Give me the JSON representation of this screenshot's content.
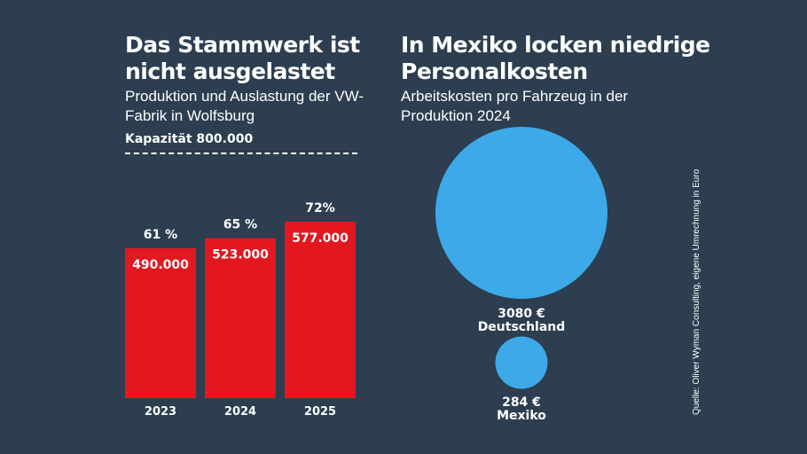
{
  "left_panel": {
    "title": "Das Stammwerk ist nicht ausgelastet",
    "subtitle": "Produktion und Auslastung der VW-Fabrik in Wolfsburg",
    "capacity_label": "Kapazität 800.000"
  },
  "right_panel": {
    "title": "In Mexiko locken niedrige Personalkosten",
    "subtitle": "Arbeitskosten pro Fahrzeug in der Produktion 2024"
  },
  "source": "Quelle: Oliver Wyman Consulting, eigene Umrechnung in Euro",
  "colors": {
    "background": "#2c3e50",
    "bar": "#e3171f",
    "bubble": "#3da9e8",
    "text": "#ffffff"
  },
  "chart_data": [
    {
      "type": "bar",
      "categories": [
        "2023",
        "2024",
        "2025"
      ],
      "values": [
        490000,
        523000,
        577000
      ],
      "value_labels": [
        "490.000",
        "523.000",
        "577.000"
      ],
      "utilization_labels": [
        "61 %",
        "65 %",
        "72%"
      ],
      "capacity": 800000,
      "capacity_label": "Kapazität 800.000"
    },
    {
      "type": "bubble",
      "categories": [
        "Deutschland",
        "Mexiko"
      ],
      "values": [
        3080,
        284
      ],
      "value_labels": [
        "3080 €",
        "284 €"
      ],
      "unit": "€"
    }
  ]
}
